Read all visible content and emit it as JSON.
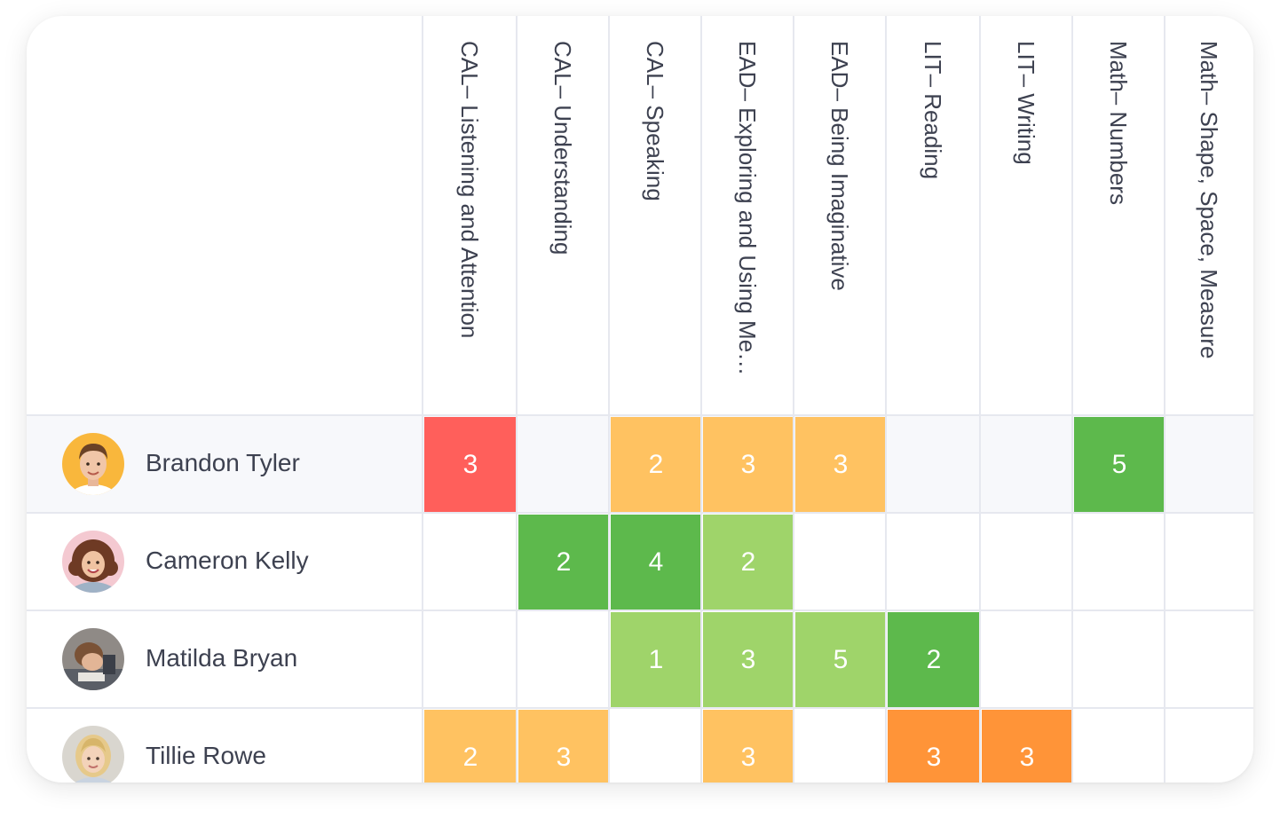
{
  "columns": [
    {
      "label": "CAL– Listening and Attention"
    },
    {
      "label": "CAL– Understanding"
    },
    {
      "label": "CAL– Speaking"
    },
    {
      "label": "EAD– Exploring and Using Media and Materials"
    },
    {
      "label": "EAD– Being Imaginative"
    },
    {
      "label": "LIT– Reading"
    },
    {
      "label": "LIT– Writing"
    },
    {
      "label": "Math– Numbers"
    },
    {
      "label": "Math– Shape, Space, Measure"
    }
  ],
  "students": [
    {
      "name": "Brandon Tyler",
      "avatar": "boy-avatar-icon"
    },
    {
      "name": "Cameron Kelly",
      "avatar": "girl-curly-avatar-icon"
    },
    {
      "name": "Matilda Bryan",
      "avatar": "child-drawing-avatar-icon"
    },
    {
      "name": "Tillie Rowe",
      "avatar": "girl-blonde-avatar-icon"
    }
  ],
  "grades": [
    [
      {
        "value": "3",
        "color": "#ff5f5b"
      },
      null,
      {
        "value": "2",
        "color": "#ffc261"
      },
      {
        "value": "3",
        "color": "#ffc261"
      },
      {
        "value": "3",
        "color": "#ffc261"
      },
      null,
      null,
      {
        "value": "5",
        "color": "#5db94c"
      },
      null
    ],
    [
      null,
      {
        "value": "2",
        "color": "#5db94c"
      },
      {
        "value": "4",
        "color": "#5db94c"
      },
      {
        "value": "2",
        "color": "#9fd46a"
      },
      null,
      null,
      null,
      null,
      null
    ],
    [
      null,
      null,
      {
        "value": "1",
        "color": "#9fd46a"
      },
      {
        "value": "3",
        "color": "#9fd46a"
      },
      {
        "value": "5",
        "color": "#9fd46a"
      },
      {
        "value": "2",
        "color": "#5db94c"
      },
      null,
      null,
      null
    ],
    [
      {
        "value": "2",
        "color": "#ffc261"
      },
      {
        "value": "3",
        "color": "#ffc261"
      },
      null,
      {
        "value": "3",
        "color": "#ffc261"
      },
      null,
      {
        "value": "3",
        "color": "#ff9438"
      },
      {
        "value": "3",
        "color": "#ff9438"
      },
      null,
      null
    ]
  ],
  "colors": {
    "row_highlight": "#f7f8fb",
    "grid_line": "#e6e8ef",
    "text": "#3d4150"
  }
}
